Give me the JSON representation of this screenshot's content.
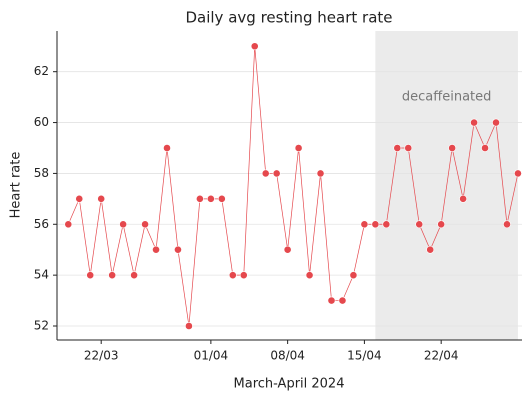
{
  "chart_data": {
    "type": "line",
    "title": "Daily avg resting heart rate",
    "x_label": "March-April 2024",
    "y_label": "Heart rate",
    "x": [
      "19/03",
      "20/03",
      "21/03",
      "22/03",
      "23/03",
      "24/03",
      "25/03",
      "26/03",
      "27/03",
      "28/03",
      "29/03",
      "30/03",
      "31/03",
      "01/04",
      "02/04",
      "03/04",
      "04/04",
      "05/04",
      "06/04",
      "07/04",
      "08/04",
      "09/04",
      "10/04",
      "11/04",
      "12/04",
      "13/04",
      "14/04",
      "15/04",
      "16/04",
      "17/04",
      "18/04",
      "19/04",
      "20/04",
      "21/04",
      "22/04",
      "23/04",
      "24/04",
      "25/04",
      "26/04",
      "27/04",
      "28/04",
      "29/04"
    ],
    "series": [
      {
        "name": "Heart rate",
        "color": "#e5484d",
        "values": [
          56,
          57,
          54,
          57,
          54,
          56,
          54,
          56,
          55,
          59,
          55,
          52,
          57,
          57,
          57,
          54,
          54,
          63,
          58,
          58,
          55,
          59,
          54,
          58,
          53,
          53,
          54,
          56,
          56,
          56,
          59,
          59,
          56,
          55,
          56,
          59,
          57,
          60,
          59,
          60,
          56,
          58
        ]
      }
    ],
    "xticks": [
      "22/03",
      "01/04",
      "08/04",
      "15/04",
      "22/04"
    ],
    "ylim": [
      51.45,
      63.6
    ],
    "yticks": [
      52,
      54,
      56,
      58,
      60,
      62
    ],
    "grid": true,
    "shaded_region": {
      "start": "16/04",
      "end": "29/04",
      "label": "decaffeinated",
      "color": "#ebebeb"
    }
  }
}
